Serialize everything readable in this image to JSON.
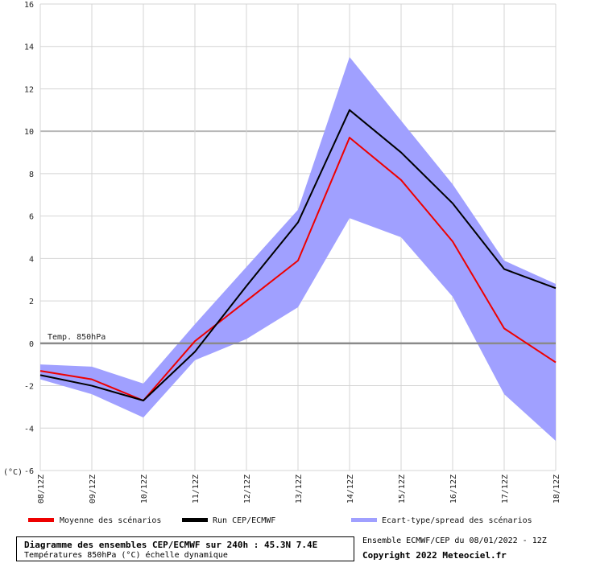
{
  "chart_data": {
    "type": "area",
    "y_unit_label": "(°C)",
    "categories": [
      "08/12Z",
      "09/12Z",
      "10/12Z",
      "11/12Z",
      "12/12Z",
      "13/12Z",
      "14/12Z",
      "15/12Z",
      "16/12Z",
      "17/12Z",
      "18/12Z"
    ],
    "yticks": [
      -6,
      -4,
      -2,
      0,
      2,
      4,
      6,
      8,
      10,
      12,
      14,
      16
    ],
    "ylim": [
      -6,
      16
    ],
    "grid": true,
    "reference_line": {
      "value": 0,
      "label": "Temp. 850hPa"
    },
    "highlight_line": 10,
    "series": [
      {
        "name": "Moyenne des scénarios",
        "color": "#ee0000",
        "values": [
          -1.3,
          -1.7,
          -2.7,
          0.1,
          2.0,
          3.9,
          9.7,
          7.7,
          4.8,
          0.7,
          -0.9
        ]
      },
      {
        "name": "Run CEP/ECMWF",
        "color": "#000000",
        "values": [
          -1.5,
          -2.0,
          -2.7,
          -0.4,
          2.7,
          5.7,
          11.0,
          9.0,
          6.6,
          3.5,
          2.6
        ]
      }
    ],
    "spread": {
      "name": "Ecart-type/spread des scénarios",
      "color": "#a0a0ff",
      "upper": [
        -1.0,
        -1.1,
        -1.9,
        0.9,
        3.6,
        6.3,
        13.5,
        10.5,
        7.5,
        3.9,
        2.8
      ],
      "lower": [
        -1.7,
        -2.4,
        -3.5,
        -0.8,
        0.2,
        1.7,
        5.9,
        5.0,
        2.2,
        -2.4,
        -4.6
      ]
    }
  },
  "legend": {
    "mean": "Moyenne des scénarios",
    "run": "Run CEP/ECMWF",
    "spread": "Ecart-type/spread des scénarios"
  },
  "footer": {
    "title": "Diagramme des ensembles CEP/ECMWF sur 240h : 45.3N 7.4E",
    "subtitle": "Températures 850hPa (°C) échelle dynamique",
    "source": "Ensemble ECMWF/CEP du 08/01/2022 - 12Z",
    "copyright": "Copyright 2022 Meteociel.fr"
  }
}
